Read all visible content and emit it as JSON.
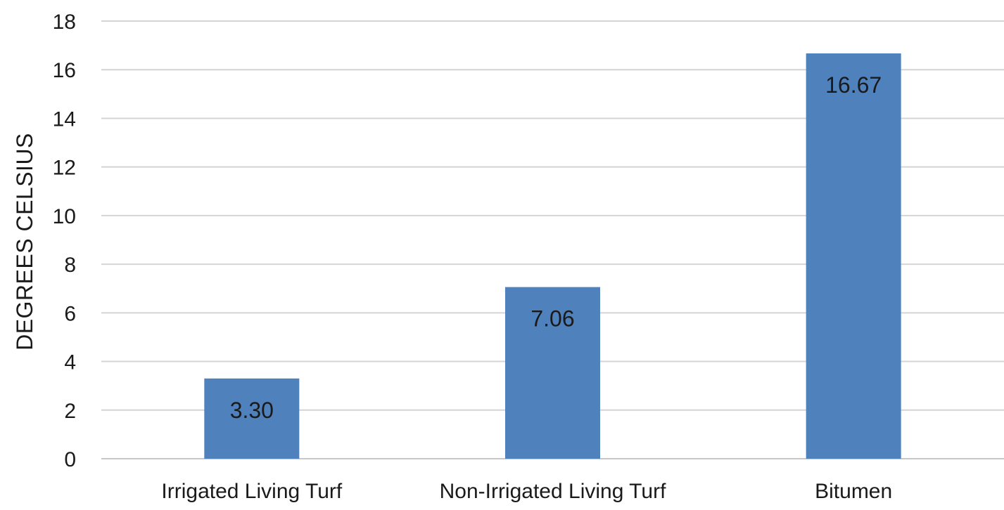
{
  "chart_data": {
    "type": "bar",
    "title": "",
    "xlabel": "",
    "ylabel": "DEGREES CELSIUS",
    "categories": [
      "Irrigated Living Turf",
      "Non-Irrigated Living Turf",
      "Bitumen"
    ],
    "values": [
      3.3,
      7.06,
      16.67
    ],
    "data_labels": [
      "3.30",
      "7.06",
      "16.67"
    ],
    "ylim": [
      0,
      18
    ],
    "y_ticks": [
      0,
      2,
      4,
      6,
      8,
      10,
      12,
      14,
      16,
      18
    ],
    "grid": true,
    "legend": "none",
    "bar_color": "#4f81bd",
    "gridline_color": "#d4d4d4"
  }
}
